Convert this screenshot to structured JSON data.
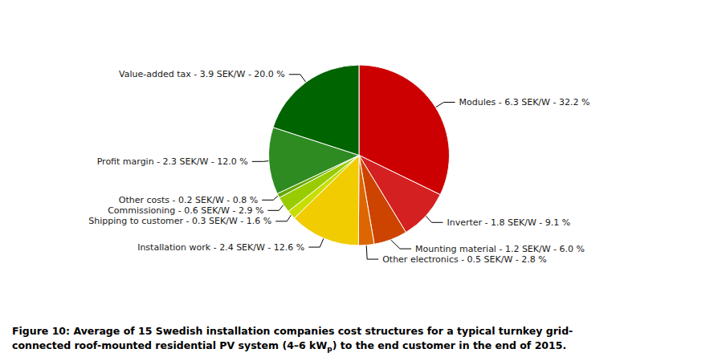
{
  "chart_data": {
    "type": "pie",
    "categories": [
      "Modules - 6.3 SEK/W - 32.2 %",
      "Inverter - 1.8 SEK/W - 9.1 %",
      "Mounting material - 1.2 SEK/W - 6.0 %",
      "Other electronics - 0.5 SEK/W - 2.8 %",
      "Installation work - 2.4 SEK/W - 12.6 %",
      "Shipping to customer - 0.3 SEK/W - 1.6 %",
      "Commissioning - 0.6 SEK/W - 2.9 %",
      "Other costs - 0.2 SEK/W - 0.8 %",
      "Profit margin - 2.3 SEK/W - 12.0 %",
      "Value-added tax - 3.9 SEK/W - 20.0 %"
    ],
    "values": [
      32.2,
      9.1,
      6.0,
      2.8,
      12.6,
      1.6,
      2.9,
      0.8,
      12.0,
      20.0
    ],
    "colors": [
      "#cc0000",
      "#d42020",
      "#cc4400",
      "#dd6600",
      "#f0cc00",
      "#c8dd00",
      "#99cc00",
      "#66aa00",
      "#2e8b22",
      "#006400"
    ],
    "annotations": [
      "Figure 10: Average of 15 Swedish installation companies cost structures for a typical turnkey grid-",
      "connected roof-mounted residential PV system (4–6 kW",
      "p",
      ") to the end customer in the end of 2015."
    ],
    "legend": false
  }
}
